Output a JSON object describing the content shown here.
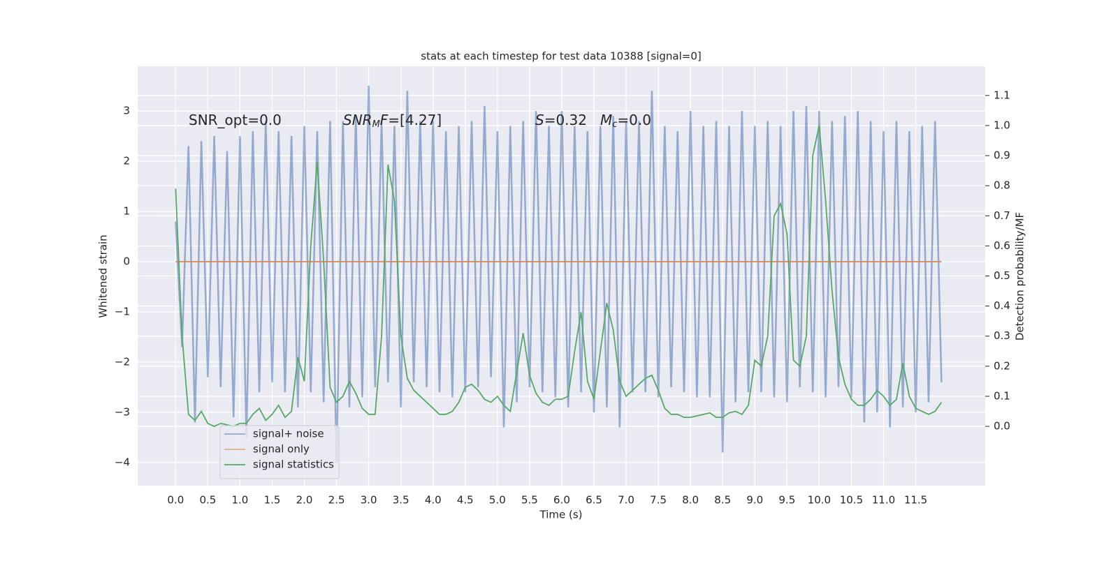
{
  "chart_data": {
    "type": "line",
    "title": "stats at each timestep for test data 10388 [signal=0]",
    "xlabel": "Time (s)",
    "ylabel": "Whitened strain",
    "y2label": "Detection probability/MF",
    "annotations": [
      [
        {
          "text": "SNR_opt=0.0",
          "style": "normal"
        }
      ],
      [
        {
          "text": "SNR",
          "style": "italic"
        },
        {
          "text": "M",
          "style": "italic-sub"
        },
        {
          "text": "F",
          "style": "italic"
        },
        {
          "text": "=[4.27]",
          "style": "normal"
        }
      ],
      [
        {
          "text": "S",
          "style": "italic"
        },
        {
          "text": "=0.32",
          "style": "normal"
        }
      ],
      [
        {
          "text": "M",
          "style": "italic"
        },
        {
          "text": "c",
          "style": "italic-sub"
        },
        {
          "text": "=0.0",
          "style": "normal"
        }
      ]
    ],
    "grid": true,
    "legend": "lower left",
    "xlim": [
      -0.59,
      12.58
    ],
    "ylim": [
      -4.46,
      3.89
    ],
    "y2lim": [
      -0.197,
      1.197
    ],
    "xticks": [
      {
        "value": 0,
        "label": "0.0"
      },
      0.5,
      {
        "value": 1,
        "label": "1.0"
      },
      1.5,
      {
        "value": 2,
        "label": "2.0"
      },
      2.5,
      {
        "value": 3,
        "label": "3.0"
      },
      3.5,
      {
        "value": 4,
        "label": "4.0"
      },
      4.5,
      {
        "value": 5,
        "label": "5.0"
      },
      5.5,
      {
        "value": 6,
        "label": "6.0"
      },
      6.5,
      {
        "value": 7,
        "label": "7.0"
      },
      7.5,
      {
        "value": 8,
        "label": "8.0"
      },
      8.5,
      {
        "value": 9,
        "label": "9.0"
      },
      9.5,
      {
        "value": 10,
        "label": "10.0"
      },
      10.5,
      {
        "value": 11,
        "label": "11.0"
      },
      11.5
    ],
    "yticks": [
      {
        "value": -4,
        "label": "−4"
      },
      {
        "value": -3,
        "label": "−3"
      },
      {
        "value": -2,
        "label": "−2"
      },
      {
        "value": -1,
        "label": "−1"
      },
      0,
      1,
      2,
      3
    ],
    "y2ticks": [
      {
        "value": 0,
        "label": "0.0"
      },
      0.1,
      0.2,
      0.3,
      0.4,
      0.5,
      0.6,
      0.7,
      0.8,
      0.9,
      {
        "value": 1,
        "label": "1.0"
      },
      1.1
    ],
    "x": [
      0,
      0.1,
      0.2,
      0.3,
      0.4,
      0.5,
      0.6,
      0.7,
      0.8,
      0.9,
      1,
      1.1,
      1.2,
      1.3,
      1.4,
      1.5,
      1.6,
      1.7,
      1.8,
      1.9,
      2,
      2.1,
      2.2,
      2.3,
      2.4,
      2.5,
      2.6,
      2.7,
      2.8,
      2.9,
      3,
      3.1,
      3.2,
      3.3,
      3.4,
      3.5,
      3.6,
      3.7,
      3.8,
      3.9,
      4,
      4.1,
      4.2,
      4.3,
      4.4,
      4.5,
      4.6,
      4.7,
      4.8,
      4.9,
      5,
      5.1,
      5.2,
      5.3,
      5.4,
      5.5,
      5.6,
      5.7,
      5.8,
      5.9,
      6,
      6.1,
      6.2,
      6.3,
      6.4,
      6.5,
      6.6,
      6.7,
      6.8,
      6.9,
      7,
      7.1,
      7.2,
      7.3,
      7.4,
      7.5,
      7.6,
      7.7,
      7.8,
      7.9,
      8,
      8.1,
      8.2,
      8.3,
      8.4,
      8.5,
      8.6,
      8.7,
      8.8,
      8.9,
      9,
      9.1,
      9.2,
      9.3,
      9.4,
      9.5,
      9.6,
      9.7,
      9.8,
      9.9,
      10,
      10.1,
      10.2,
      10.3,
      10.4,
      10.5,
      10.6,
      10.7,
      10.8,
      10.9,
      11,
      11.1,
      11.2,
      11.3,
      11.4,
      11.5,
      11.6,
      11.7,
      11.8,
      11.9
    ],
    "series": [
      {
        "name": "signal+ noise",
        "color": "#4c72b0",
        "values": [
          0.8,
          -1.7,
          2.3,
          -3.2,
          2.4,
          -2.3,
          2.5,
          -2.5,
          2.2,
          -3.1,
          2.5,
          -3.5,
          2.6,
          -2.6,
          2.8,
          -2.4,
          2.6,
          -2.6,
          2.5,
          -2.9,
          2.7,
          -2.6,
          2.6,
          -2.8,
          2.8,
          -4.0,
          2.8,
          -2.9,
          2.9,
          -2.7,
          3.5,
          -2.5,
          2.8,
          -2.4,
          2.7,
          -2.9,
          3.4,
          -2.4,
          2.8,
          -2.5,
          2.8,
          -2.6,
          2.6,
          -2.7,
          2.7,
          -2.6,
          2.8,
          -2.5,
          3.1,
          -2.3,
          2.6,
          -3.3,
          2.7,
          -2.8,
          2.8,
          -2.5,
          3.0,
          -2.6,
          2.7,
          -2.7,
          3.0,
          -2.9,
          2.7,
          -2.6,
          2.6,
          -3.0,
          2.7,
          -2.9,
          2.9,
          -3.3,
          2.8,
          -2.6,
          2.8,
          -2.6,
          3.4,
          -2.7,
          2.7,
          -2.5,
          2.6,
          -2.6,
          3.0,
          -2.7,
          2.7,
          -2.7,
          2.8,
          -3.8,
          2.7,
          -2.8,
          3.0,
          -2.6,
          2.7,
          -2.6,
          2.8,
          -2.7,
          2.7,
          -2.8,
          3.0,
          -2.5,
          3.1,
          -2.6,
          3.0,
          -2.7,
          2.8,
          -2.5,
          2.9,
          -2.7,
          3.0,
          -3.2,
          2.8,
          -3.0,
          2.6,
          -3.3,
          2.8,
          -2.9,
          2.6,
          -3.0,
          2.7,
          -2.8,
          2.8,
          -2.4
        ]
      },
      {
        "name": "signal only",
        "color": "#dd8452",
        "values": [
          0,
          0,
          0,
          0,
          0,
          0,
          0,
          0,
          0,
          0,
          0,
          0,
          0,
          0,
          0,
          0,
          0,
          0,
          0,
          0,
          0,
          0,
          0,
          0,
          0,
          0,
          0,
          0,
          0,
          0,
          0,
          0,
          0,
          0,
          0,
          0,
          0,
          0,
          0,
          0,
          0,
          0,
          0,
          0,
          0,
          0,
          0,
          0,
          0,
          0,
          0,
          0,
          0,
          0,
          0,
          0,
          0,
          0,
          0,
          0,
          0,
          0,
          0,
          0,
          0,
          0,
          0,
          0,
          0,
          0,
          0,
          0,
          0,
          0,
          0,
          0,
          0,
          0,
          0,
          0,
          0,
          0,
          0,
          0,
          0,
          0,
          0,
          0,
          0,
          0,
          0,
          0,
          0,
          0,
          0,
          0,
          0,
          0,
          0,
          0,
          0,
          0,
          0,
          0,
          0,
          0,
          0,
          0,
          0,
          0,
          0,
          0,
          0,
          0,
          0,
          0,
          0,
          0,
          0,
          0
        ]
      },
      {
        "name": "signal statistics",
        "color": "#55a868",
        "axis": "y2",
        "values": [
          0.79,
          0.3,
          0.04,
          0.02,
          0.05,
          0.01,
          0.0,
          0.01,
          0.005,
          0.0,
          0.01,
          0.01,
          0.04,
          0.06,
          0.02,
          0.04,
          0.07,
          0.03,
          0.05,
          0.23,
          0.15,
          0.6,
          0.88,
          0.55,
          0.13,
          0.08,
          0.1,
          0.15,
          0.11,
          0.06,
          0.04,
          0.04,
          0.3,
          0.87,
          0.75,
          0.3,
          0.16,
          0.12,
          0.1,
          0.08,
          0.06,
          0.04,
          0.04,
          0.05,
          0.08,
          0.13,
          0.14,
          0.12,
          0.09,
          0.08,
          0.1,
          0.07,
          0.05,
          0.18,
          0.31,
          0.17,
          0.11,
          0.08,
          0.07,
          0.09,
          0.09,
          0.1,
          0.25,
          0.38,
          0.15,
          0.09,
          0.25,
          0.41,
          0.32,
          0.15,
          0.1,
          0.12,
          0.14,
          0.16,
          0.17,
          0.12,
          0.06,
          0.04,
          0.04,
          0.03,
          0.03,
          0.035,
          0.04,
          0.045,
          0.03,
          0.03,
          0.045,
          0.05,
          0.04,
          0.07,
          0.22,
          0.2,
          0.3,
          0.7,
          0.74,
          0.64,
          0.22,
          0.2,
          0.3,
          0.9,
          1.0,
          0.75,
          0.45,
          0.23,
          0.14,
          0.09,
          0.07,
          0.07,
          0.09,
          0.12,
          0.1,
          0.07,
          0.09,
          0.21,
          0.1,
          0.06,
          0.05,
          0.04,
          0.05,
          0.08
        ]
      }
    ]
  }
}
